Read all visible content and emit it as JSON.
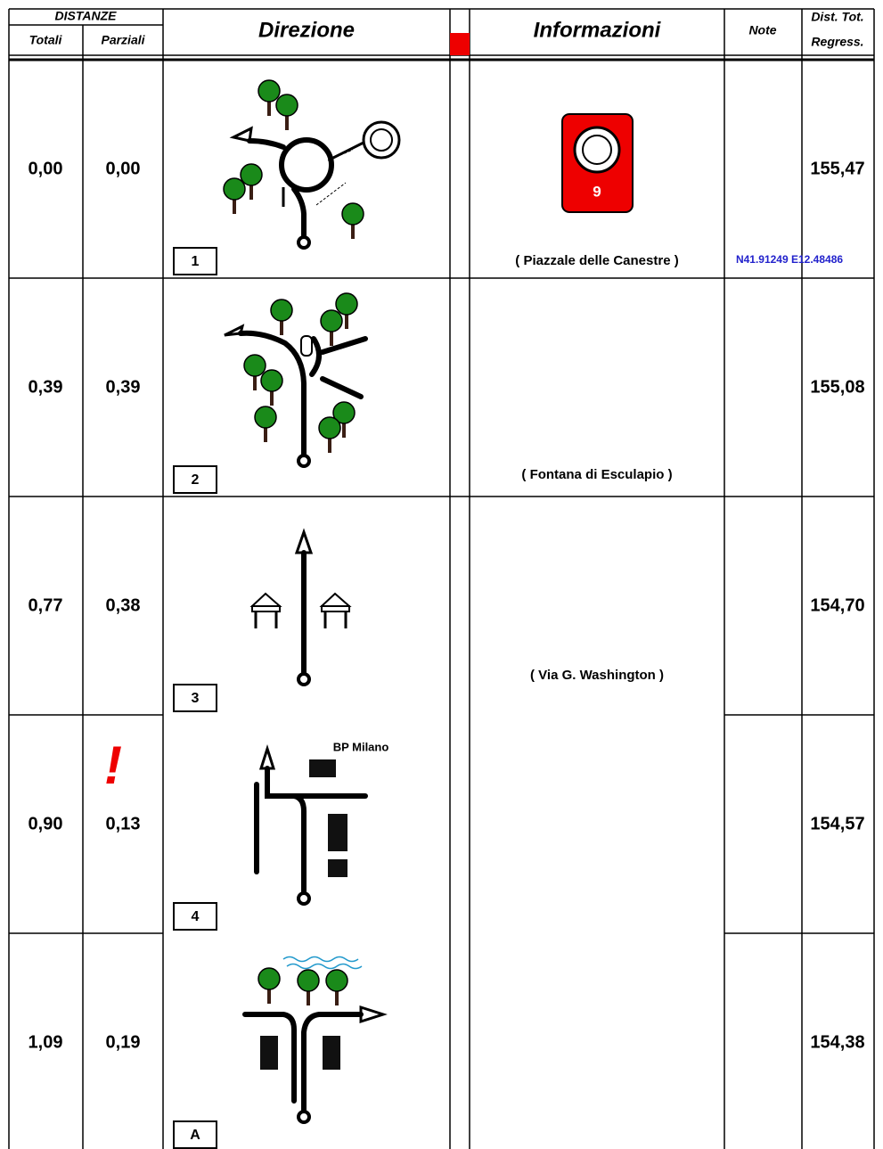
{
  "header": {
    "distanze": "DISTANZE",
    "totali": "Totali",
    "parziali": "Parziali",
    "direzione": "Direzione",
    "informazioni": "Informazioni",
    "note": "Note",
    "dist_tot": "Dist. Tot.",
    "regress": "Regress."
  },
  "rows": [
    {
      "totali": "0,00",
      "parziali": "0,00",
      "box": "1",
      "badge": "9",
      "info": "( Piazzale delle Canestre )",
      "note": "N41.91249 E12.48486",
      "regress": "155,47"
    },
    {
      "totali": "0,39",
      "parziali": "0,39",
      "box": "2",
      "info": "( Fontana di Esculapio )",
      "regress": "155,08"
    },
    {
      "totali": "0,77",
      "parziali": "0,38",
      "box": "3",
      "info": "( Via G. Washington )",
      "regress": "154,70"
    },
    {
      "totali": "0,90",
      "parziali": "0,13",
      "box": "4",
      "alert": "!",
      "sign": "BP Milano",
      "regress": "154,57"
    },
    {
      "totali": "1,09",
      "parziali": "0,19",
      "box": "A",
      "regress": "154,38"
    }
  ]
}
